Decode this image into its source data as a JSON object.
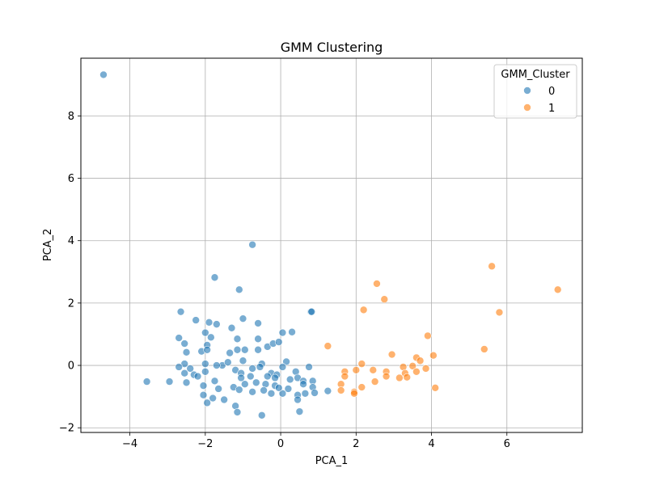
{
  "chart_data": {
    "type": "scatter",
    "title": "GMM Clustering",
    "xlabel": "PCA_1",
    "ylabel": "PCA_2",
    "xlim": [
      -5.3,
      8.0
    ],
    "ylim": [
      -2.15,
      9.85
    ],
    "xticks": [
      -4,
      -2,
      0,
      2,
      4,
      6
    ],
    "yticks": [
      -2,
      0,
      2,
      4,
      6,
      8
    ],
    "grid": true,
    "legend": {
      "title": "GMM_Cluster",
      "placement": "top-right"
    },
    "series": [
      {
        "name": "0",
        "color": "#1f77b4",
        "points": [
          [
            -4.7,
            9.32
          ],
          [
            -0.75,
            3.87
          ],
          [
            -1.75,
            2.82
          ],
          [
            -1.1,
            2.43
          ],
          [
            0.8,
            1.72
          ],
          [
            0.82,
            1.72
          ],
          [
            -2.65,
            1.72
          ],
          [
            -2.25,
            1.45
          ],
          [
            -1.0,
            1.5
          ],
          [
            -1.9,
            1.38
          ],
          [
            -1.7,
            1.32
          ],
          [
            -1.3,
            1.2
          ],
          [
            -0.6,
            1.35
          ],
          [
            0.05,
            1.05
          ],
          [
            0.3,
            1.07
          ],
          [
            -2.0,
            1.05
          ],
          [
            -1.85,
            0.9
          ],
          [
            -2.7,
            0.88
          ],
          [
            -1.15,
            0.85
          ],
          [
            -0.6,
            0.85
          ],
          [
            -2.55,
            0.7
          ],
          [
            -0.35,
            0.6
          ],
          [
            -0.2,
            0.7
          ],
          [
            -0.05,
            0.75
          ],
          [
            -1.95,
            0.65
          ],
          [
            -2.1,
            0.45
          ],
          [
            -1.95,
            0.5
          ],
          [
            -1.35,
            0.4
          ],
          [
            -1.15,
            0.5
          ],
          [
            -0.95,
            0.5
          ],
          [
            -0.6,
            0.5
          ],
          [
            -2.5,
            0.42
          ],
          [
            -1.55,
            0.0
          ],
          [
            -2.0,
            0.05
          ],
          [
            -1.4,
            0.1
          ],
          [
            -1.0,
            0.15
          ],
          [
            0.15,
            0.12
          ],
          [
            -0.5,
            0.05
          ],
          [
            -2.55,
            0.05
          ],
          [
            -2.7,
            -0.05
          ],
          [
            -2.4,
            -0.1
          ],
          [
            -2.55,
            -0.25
          ],
          [
            -2.3,
            -0.3
          ],
          [
            -2.0,
            -0.2
          ],
          [
            -1.7,
            0.0
          ],
          [
            -1.2,
            -0.15
          ],
          [
            -1.05,
            -0.25
          ],
          [
            -0.75,
            -0.1
          ],
          [
            -0.55,
            -0.05
          ],
          [
            -0.25,
            -0.25
          ],
          [
            -0.1,
            -0.3
          ],
          [
            0.05,
            -0.05
          ],
          [
            0.4,
            -0.2
          ],
          [
            0.75,
            -0.05
          ],
          [
            -2.2,
            -0.35
          ],
          [
            -1.75,
            -0.5
          ],
          [
            -1.05,
            -0.4
          ],
          [
            -0.8,
            -0.35
          ],
          [
            -0.35,
            -0.35
          ],
          [
            -0.15,
            -0.4
          ],
          [
            0.25,
            -0.45
          ],
          [
            0.45,
            -0.4
          ],
          [
            0.6,
            -0.5
          ],
          [
            0.85,
            -0.5
          ],
          [
            -2.95,
            -0.52
          ],
          [
            -3.55,
            -0.52
          ],
          [
            -2.5,
            -0.55
          ],
          [
            -2.05,
            -0.65
          ],
          [
            -1.65,
            -0.75
          ],
          [
            -1.25,
            -0.7
          ],
          [
            -0.95,
            -0.6
          ],
          [
            -0.65,
            -0.55
          ],
          [
            -0.4,
            -0.6
          ],
          [
            -0.15,
            -0.65
          ],
          [
            0.2,
            -0.75
          ],
          [
            0.6,
            -0.6
          ],
          [
            0.85,
            -0.7
          ],
          [
            1.25,
            -0.82
          ],
          [
            -2.05,
            -0.95
          ],
          [
            -1.8,
            -1.05
          ],
          [
            -1.5,
            -1.1
          ],
          [
            -0.75,
            -0.85
          ],
          [
            -0.45,
            -0.8
          ],
          [
            -0.25,
            -0.9
          ],
          [
            0.05,
            -0.9
          ],
          [
            0.45,
            -0.95
          ],
          [
            0.65,
            -0.9
          ],
          [
            0.9,
            -0.88
          ],
          [
            -1.95,
            -1.2
          ],
          [
            -1.2,
            -1.3
          ],
          [
            -1.15,
            -1.5
          ],
          [
            -0.5,
            -1.6
          ],
          [
            0.5,
            -1.48
          ],
          [
            0.45,
            -1.1
          ],
          [
            -1.1,
            -0.78
          ],
          [
            -0.05,
            -0.72
          ]
        ]
      },
      {
        "name": "1",
        "color": "#ff7f0e",
        "points": [
          [
            7.35,
            2.43
          ],
          [
            5.6,
            3.18
          ],
          [
            5.8,
            1.7
          ],
          [
            2.55,
            2.62
          ],
          [
            2.75,
            2.12
          ],
          [
            2.2,
            1.78
          ],
          [
            3.9,
            0.95
          ],
          [
            5.4,
            0.52
          ],
          [
            1.25,
            0.62
          ],
          [
            4.05,
            0.32
          ],
          [
            2.95,
            0.35
          ],
          [
            3.6,
            0.25
          ],
          [
            3.7,
            0.15
          ],
          [
            2.15,
            0.05
          ],
          [
            3.25,
            -0.05
          ],
          [
            3.5,
            -0.02
          ],
          [
            1.7,
            -0.2
          ],
          [
            2.0,
            -0.15
          ],
          [
            2.45,
            -0.15
          ],
          [
            2.8,
            -0.2
          ],
          [
            3.3,
            -0.25
          ],
          [
            3.6,
            -0.2
          ],
          [
            3.85,
            -0.1
          ],
          [
            1.7,
            -0.35
          ],
          [
            2.8,
            -0.35
          ],
          [
            3.15,
            -0.4
          ],
          [
            3.35,
            -0.38
          ],
          [
            2.5,
            -0.52
          ],
          [
            1.6,
            -0.6
          ],
          [
            2.15,
            -0.7
          ],
          [
            4.1,
            -0.72
          ],
          [
            1.6,
            -0.8
          ],
          [
            1.95,
            -0.85
          ],
          [
            1.95,
            -0.9
          ]
        ]
      }
    ]
  }
}
